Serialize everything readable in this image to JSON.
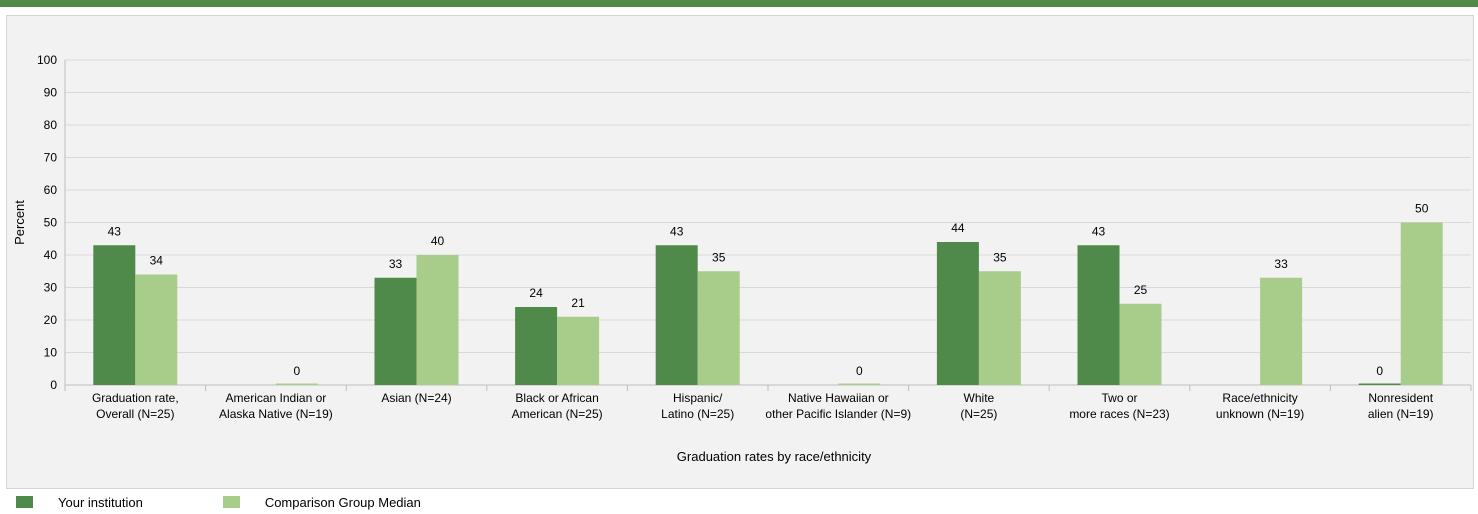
{
  "colors": {
    "institution": "#4f8a4a",
    "median": "#a8cc8a",
    "grid": "#d9d9d9",
    "accent_bar": "#4f8a4a"
  },
  "chart_data": {
    "type": "bar",
    "title": "",
    "xlabel": "Graduation rates by race/ethnicity",
    "ylabel": "Percent",
    "ylim": [
      0,
      100
    ],
    "yticks": [
      0,
      10,
      20,
      30,
      40,
      50,
      60,
      70,
      80,
      90,
      100
    ],
    "grid": true,
    "legend_position": "bottom-left",
    "categories": [
      [
        "Graduation rate,",
        "Overall (N=25)"
      ],
      [
        "American Indian or",
        "Alaska Native (N=19)"
      ],
      [
        "Asian (N=24)"
      ],
      [
        "Black or African",
        "American (N=25)"
      ],
      [
        "Hispanic/",
        "Latino (N=25)"
      ],
      [
        "Native Hawaiian or",
        "other Pacific Islander (N=9)"
      ],
      [
        "White",
        "(N=25)"
      ],
      [
        "Two or",
        "more races (N=23)"
      ],
      [
        "Race/ethnicity",
        "unknown (N=19)"
      ],
      [
        "Nonresident",
        "alien (N=19)"
      ]
    ],
    "series": [
      {
        "name": "Your institution",
        "values": [
          43,
          null,
          33,
          24,
          43,
          null,
          44,
          43,
          null,
          0
        ]
      },
      {
        "name": "Comparison Group Median",
        "values": [
          34,
          0,
          40,
          21,
          35,
          0,
          35,
          25,
          33,
          50
        ]
      }
    ]
  }
}
